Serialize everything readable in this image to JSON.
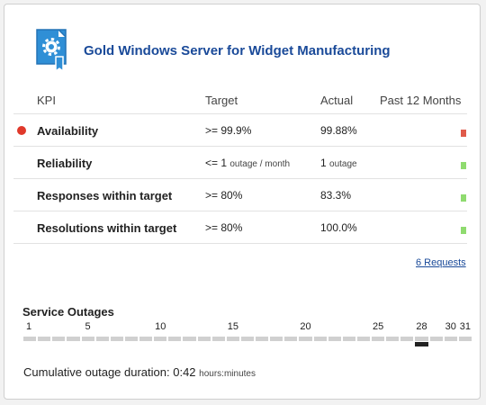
{
  "header": {
    "title": "Gold Windows Server for Widget Manufacturing",
    "icon": "certificate-gear-icon"
  },
  "kpi": {
    "columns": {
      "kpi": "KPI",
      "target": "Target",
      "actual": "Actual",
      "trend": "Past 12 Months"
    },
    "rows": [
      {
        "name": "Availability",
        "target": ">= 99.9%",
        "target_unit": "",
        "actual": "99.88%",
        "actual_unit": "",
        "status": "red",
        "trend_color": "#e05a4a"
      },
      {
        "name": "Reliability",
        "target": "<= 1",
        "target_unit": "outage / month",
        "actual": "1",
        "actual_unit": "outage",
        "status": "none",
        "trend_color": "#8fdb6f"
      },
      {
        "name": "Responses within target",
        "target": ">= 80%",
        "target_unit": "",
        "actual": "83.3%",
        "actual_unit": "",
        "status": "none",
        "trend_color": "#8fdb6f"
      },
      {
        "name": "Resolutions within target",
        "target": ">= 80%",
        "target_unit": "",
        "actual": "100.0%",
        "actual_unit": "",
        "status": "none",
        "trend_color": "#8fdb6f"
      }
    ]
  },
  "requests": {
    "label": "6 Requests"
  },
  "outages": {
    "title": "Service Outages",
    "days_in_month": 31,
    "day_labels": [
      "1",
      "5",
      "10",
      "15",
      "20",
      "25",
      "28",
      "30",
      "31"
    ],
    "outage_days": [
      28
    ],
    "cumulative_label": "Cumulative outage duration:",
    "cumulative_value": "0:42",
    "cumulative_unit": "hours:minutes"
  },
  "colors": {
    "accent": "#1a4a99",
    "status_red": "#e0392b",
    "status_green": "#8fdb6f"
  }
}
